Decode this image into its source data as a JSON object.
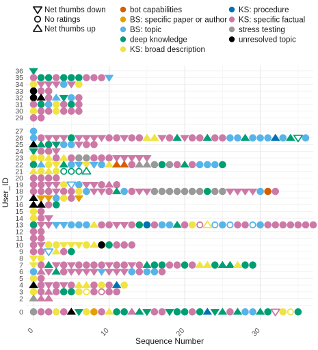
{
  "chart_data": {
    "type": "scatter",
    "xlabel": "Sequence Number",
    "ylabel": "User_ID",
    "xlim": [
      -1,
      37
    ],
    "x_ticks": [
      0,
      10,
      20,
      30
    ],
    "y_categories": [
      0,
      2,
      3,
      4,
      5,
      6,
      7,
      8,
      9,
      10,
      11,
      12,
      13,
      14,
      15,
      16,
      17,
      18,
      19,
      20,
      21,
      22,
      23,
      24,
      25,
      26,
      27,
      29,
      30,
      31,
      32,
      33,
      34,
      35,
      36
    ],
    "grid": true,
    "legend_position": "top",
    "shape_legend": [
      {
        "key": "down",
        "label": "Net thumbs down"
      },
      {
        "key": "none",
        "label": "No ratings"
      },
      {
        "key": "up",
        "label": "Net thumbs up"
      }
    ],
    "color_legend": [
      {
        "key": "bot",
        "label": "bot capabilities",
        "color": "#D55E00"
      },
      {
        "key": "bs_paper",
        "label": "BS: specific paper or author",
        "color": "#E69F00"
      },
      {
        "key": "bs_topic",
        "label": "BS: topic",
        "color": "#56B4E9"
      },
      {
        "key": "deep",
        "label": "deep knowledge",
        "color": "#009E73"
      },
      {
        "key": "ks_broad",
        "label": "KS: broad description",
        "color": "#F0E442"
      },
      {
        "key": "ks_proc",
        "label": "KS: procedure",
        "color": "#0072B2"
      },
      {
        "key": "ks_fact",
        "label": "KS: specific factual",
        "color": "#CC79A7"
      },
      {
        "key": "stress",
        "label": "stress testing",
        "color": "#999999"
      },
      {
        "key": "unres",
        "label": "unresolved topic",
        "color": "#000000"
      }
    ],
    "code_key": {
      "c": {
        "color": "ks_fact",
        "shape": "none"
      },
      "C": {
        "color": "ks_fact",
        "shape": "down"
      },
      "^c": {
        "color": "ks_fact",
        "shape": "up"
      },
      "g": {
        "color": "deep",
        "shape": "none"
      },
      "G": {
        "color": "deep",
        "shape": "down"
      },
      "^g": {
        "color": "deep",
        "shape": "up"
      },
      "s": {
        "color": "bs_topic",
        "shape": "none"
      },
      "S": {
        "color": "bs_topic",
        "shape": "down"
      },
      "^s": {
        "color": "bs_topic",
        "shape": "up"
      },
      "y": {
        "color": "ks_broad",
        "shape": "none"
      },
      "Y": {
        "color": "ks_broad",
        "shape": "down"
      },
      "^y": {
        "color": "ks_broad",
        "shape": "up"
      },
      "o": {
        "color": "bs_paper",
        "shape": "none"
      },
      "O": {
        "color": "bs_paper",
        "shape": "down"
      },
      "^o": {
        "color": "bs_paper",
        "shape": "up"
      },
      "r": {
        "color": "bot",
        "shape": "none"
      },
      "R": {
        "color": "bot",
        "shape": "down"
      },
      "^r": {
        "color": "bot",
        "shape": "up"
      },
      "b": {
        "color": "ks_proc",
        "shape": "none"
      },
      "B": {
        "color": "ks_proc",
        "shape": "down"
      },
      "^b": {
        "color": "ks_proc",
        "shape": "up"
      },
      "a": {
        "color": "stress",
        "shape": "none"
      },
      "A": {
        "color": "stress",
        "shape": "down"
      },
      "^a": {
        "color": "stress",
        "shape": "up"
      },
      "k": {
        "color": "unres",
        "shape": "none"
      },
      "K": {
        "color": "unres",
        "shape": "down"
      },
      "^k": {
        "color": "unres",
        "shape": "up"
      },
      "oc": {
        "color": "ks_fact",
        "shape": "none",
        "hollow": true
      },
      "og": {
        "color": "deep",
        "shape": "none",
        "hollow": true
      },
      "os": {
        "color": "bs_topic",
        "shape": "none",
        "hollow": true
      },
      "oy": {
        "color": "ks_broad",
        "shape": "none",
        "hollow": true
      },
      "vc": {
        "color": "ks_fact",
        "shape": "down",
        "hollow": true
      },
      "vg": {
        "color": "deep",
        "shape": "down",
        "hollow": true
      },
      "vs": {
        "color": "bs_topic",
        "shape": "down",
        "hollow": true
      },
      "^oy": {
        "color": "ks_broad",
        "shape": "up",
        "hollow": true
      },
      "^og": {
        "color": "deep",
        "shape": "up",
        "hollow": true
      }
    },
    "rows": [
      {
        "user": 36,
        "seq": "G"
      },
      {
        "user": 35,
        "seq": "c g g c g g g c c c S"
      },
      {
        "user": 34,
        "seq": "y C C C s C y"
      },
      {
        "user": 33,
        "seq": "k c c"
      },
      {
        "user": 32,
        "seq": "k ^k c ^s G s c"
      },
      {
        "user": 31,
        "seq": "c g s y c g c"
      },
      {
        "user": 30,
        "seq": "y c c y c c c"
      },
      {
        "user": 29,
        "seq": "c c"
      },
      {
        "user": 27,
        "seq": "s"
      },
      {
        "user": 26,
        "seq": "s c C C C g C C C C c c C c c ^y ^y C c ^g C c c ^g c c s s ^g s s s ^b s ^g vg s"
      },
      {
        "user": 25,
        "seq": "^k ^g g G s s C c c"
      },
      {
        "user": 24,
        "seq": "G c c C"
      },
      {
        "user": 23,
        "seq": "y y ^y c ^y c a a c c c C C C C C"
      },
      {
        "user": 22,
        "seq": "g ^s y Y ^g s S Y S s ^y ^r ^r c ^a ^a a g a c ^g c s s s g"
      },
      {
        "user": 21,
        "seq": "^y y ^y y og og og ^og"
      },
      {
        "user": 20,
        "seq": "c c c c"
      },
      {
        "user": 19,
        "seq": "c c C C y vs s C C c ^c c"
      },
      {
        "user": 18,
        "seq": "c c c C c c y s C C c ^g s c C C a a a a a a a g a a C C C C s r c"
      },
      {
        "user": 17,
        "seq": "^k O O s y c O"
      },
      {
        "user": 16,
        "seq": "^k ^k c g"
      },
      {
        "user": 15,
        "seq": "y c"
      },
      {
        "user": 14,
        "seq": "y c C"
      },
      {
        "user": 13,
        "seq": "g C C S S s s s ^y c c C C c g b c s s ^g c y oc ^oy os s os c c os s c c c c c c c"
      },
      {
        "user": 12,
        "seq": "c c"
      },
      {
        "user": 11,
        "seq": "c c"
      },
      {
        "user": 10,
        "seq": "c C y y Y Y Y y ^y k g c c c"
      },
      {
        "user": 9,
        "seq": "c c vs ^y c g"
      },
      {
        "user": 8,
        "seq": "Y y"
      },
      {
        "user": 7,
        "seq": "Y c ^g C c C c c c c C c c C c ^g g g c c g c ^y ^y g ^g ^g ^y g g"
      },
      {
        "user": 6,
        "seq": "s ^c C ^g c C C C C S C C C s c s s c"
      },
      {
        "user": 5,
        "seq": "y c"
      },
      {
        "user": 4,
        "seq": "^k c C c C c ^y ^y c y c ^b y"
      },
      {
        "user": 3,
        "seq": "y c ^c c g g y oy c oc c c"
      },
      {
        "user": 2,
        "seq": "^a ^c ^c"
      },
      {
        "user": 0,
        "seq": "a c c y c ^k G y o c ^y g g ^c ^g G c c G g g c g ^b G ^g c ^g s s ^g g vc y oy g"
      }
    ]
  }
}
